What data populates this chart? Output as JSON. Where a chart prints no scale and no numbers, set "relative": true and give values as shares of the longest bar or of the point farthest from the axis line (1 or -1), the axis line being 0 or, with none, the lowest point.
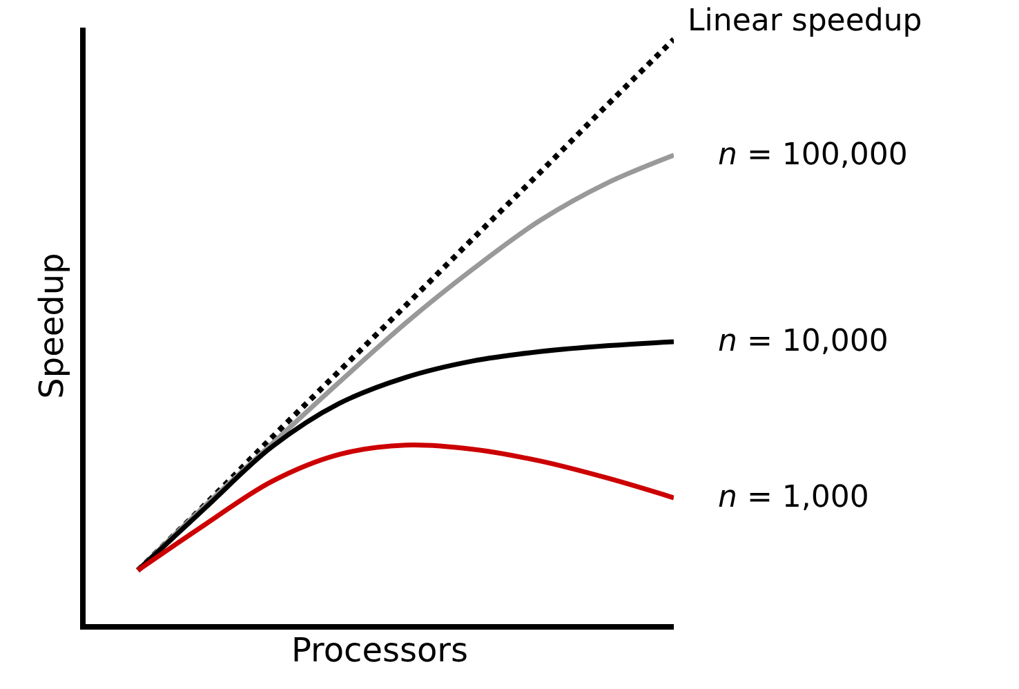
{
  "chart_data": {
    "type": "line",
    "relative": true,
    "xlabel": "Processors",
    "ylabel": "Speedup",
    "tick_labels": false,
    "legend": false,
    "categories": [
      null,
      null,
      null,
      null,
      null,
      null,
      null,
      null,
      null
    ],
    "series": [
      {
        "name": "Linear speedup",
        "color": "#000000",
        "line_style": "dotted",
        "values": [
          0.092,
          0.204,
          0.319,
          0.432,
          0.545,
          0.659,
          0.772,
          0.887,
          1.0
        ]
      },
      {
        "name": "n = 100,000",
        "color": "#999999",
        "line_style": "solid",
        "values": [
          0.092,
          0.202,
          0.308,
          0.413,
          0.515,
          0.607,
          0.69,
          0.754,
          0.802
        ]
      },
      {
        "name": "n = 10,000",
        "color": "#000000",
        "line_style": "solid",
        "values": [
          0.092,
          0.198,
          0.303,
          0.377,
          0.422,
          0.45,
          0.466,
          0.476,
          0.483
        ]
      },
      {
        "name": "n = 1,000",
        "color": "#cc0000",
        "line_style": "solid",
        "values": [
          0.092,
          0.17,
          0.244,
          0.29,
          0.306,
          0.299,
          0.279,
          0.25,
          0.216
        ]
      }
    ]
  }
}
